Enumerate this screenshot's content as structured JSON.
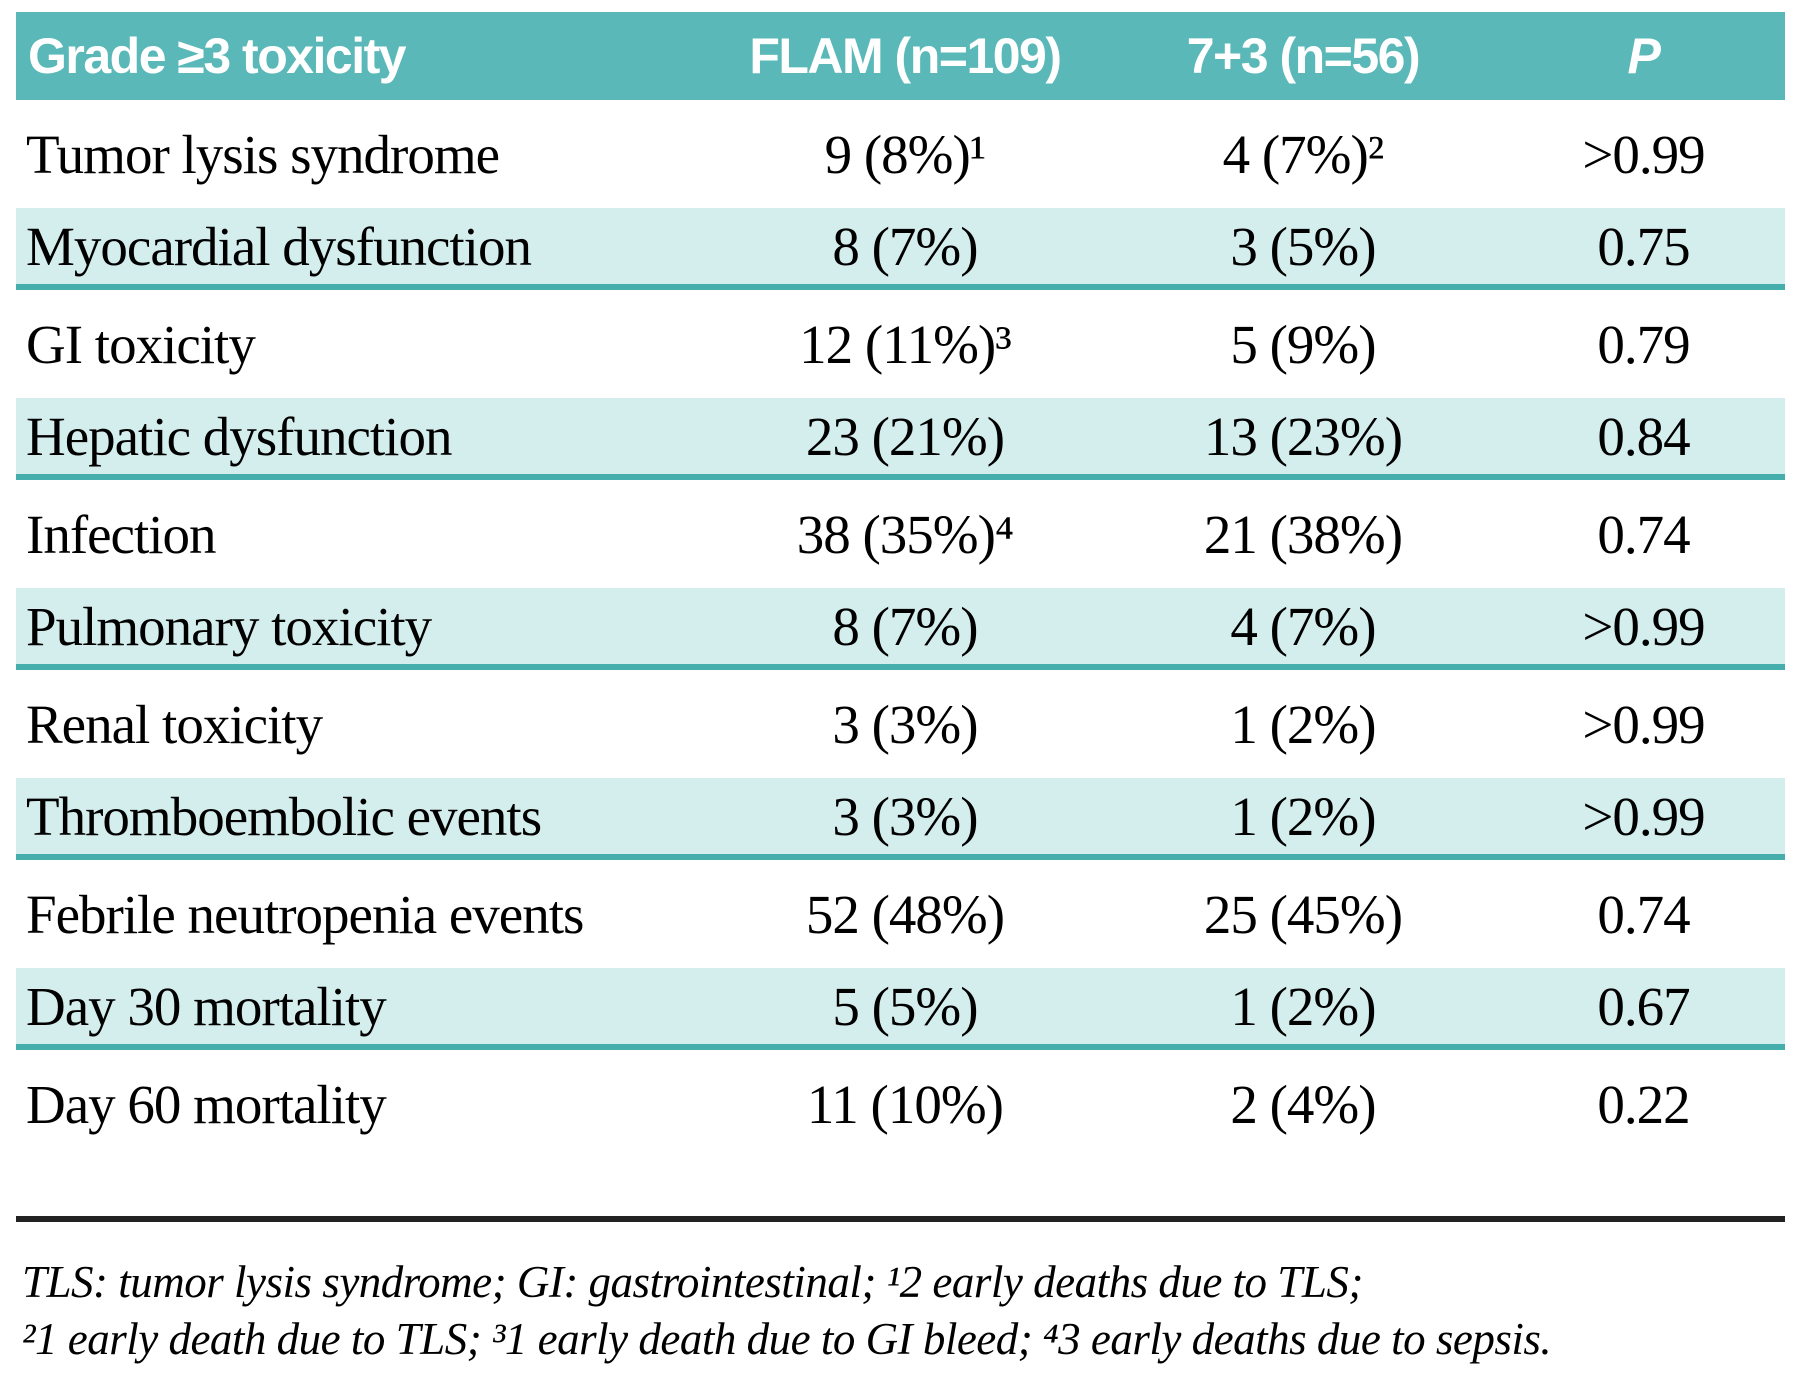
{
  "table": {
    "header": {
      "columns": [
        "Grade ≥3 toxicity",
        "FLAM (n=109)",
        "7+3 (n=56)",
        "P"
      ]
    },
    "rows": [
      {
        "label": "Tumor lysis syndrome",
        "flam": "9 (8%)¹",
        "seven_three": "4 (7%)²",
        "p": ">0.99"
      },
      {
        "label": "Myocardial dysfunction",
        "flam": "8 (7%)",
        "seven_three": "3 (5%)",
        "p": "0.75"
      },
      {
        "label": "GI toxicity",
        "flam": "12 (11%)³",
        "seven_three": "5 (9%)",
        "p": "0.79"
      },
      {
        "label": "Hepatic dysfunction",
        "flam": "23 (21%)",
        "seven_three": "13 (23%)",
        "p": "0.84"
      },
      {
        "label": "Infection",
        "flam": "38 (35%)⁴",
        "seven_three": "21 (38%)",
        "p": "0.74"
      },
      {
        "label": "Pulmonary toxicity",
        "flam": "8 (7%)",
        "seven_three": "4 (7%)",
        "p": ">0.99"
      },
      {
        "label": "Renal toxicity",
        "flam": "3 (3%)",
        "seven_three": "1 (2%)",
        "p": ">0.99"
      },
      {
        "label": "Thromboembolic events",
        "flam": "3 (3%)",
        "seven_three": "1 (2%)",
        "p": ">0.99"
      },
      {
        "label": "Febrile neutropenia events",
        "flam": "52 (48%)",
        "seven_three": "25 (45%)",
        "p": "0.74"
      },
      {
        "label": "Day 30 mortality",
        "flam": "5 (5%)",
        "seven_three": "1 (2%)",
        "p": "0.67"
      },
      {
        "label": "Day 60 mortality",
        "flam": "11 (10%)",
        "seven_three": "2 (4%)",
        "p": "0.22"
      }
    ]
  },
  "footnote": {
    "line1": "TLS: tumor lysis syndrome; GI: gastrointestinal; ¹2 early deaths due to TLS;",
    "line2": "²1 early death due to TLS; ³1 early death due to GI bleed; ⁴3 early deaths due to sepsis."
  },
  "colors": {
    "header_bg": "#5ab8b8",
    "header_text": "#ffffff",
    "row_shaded_bg": "#d4eded",
    "row_border": "#46adad",
    "body_text": "#000000",
    "rule_color": "#222222"
  }
}
